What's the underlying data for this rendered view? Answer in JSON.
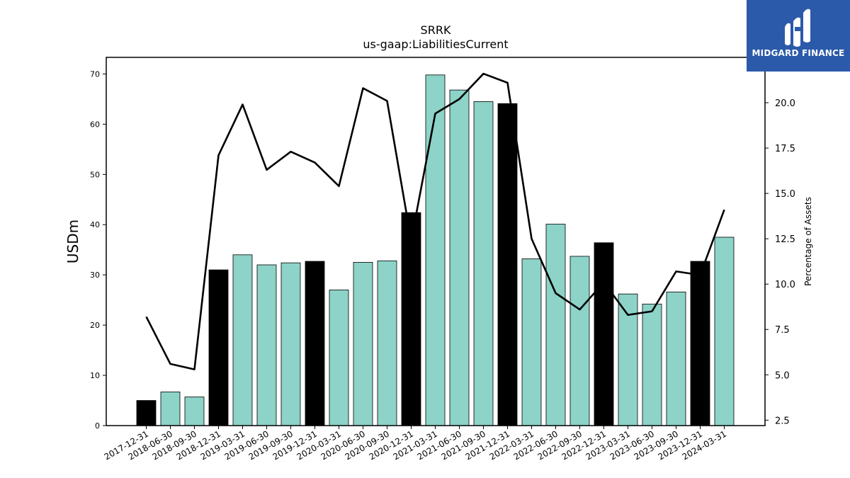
{
  "brand": {
    "name": "MIDGARD FINANCE",
    "icon": "midgard-logo-icon",
    "color": "#2b5aaa"
  },
  "chart_data": {
    "type": "bar",
    "title": "SRRK",
    "subtitle": "us-gaap:LiabilitiesCurrent",
    "ylabel": "USDm",
    "y2label": "Percentage of Assets",
    "ylim": [
      0,
      73.3
    ],
    "y2lim": [
      2.2,
      22.5
    ],
    "yticks": [
      0,
      10,
      20,
      30,
      40,
      50,
      60,
      70
    ],
    "y2ticks": [
      "2.5",
      "5.0",
      "7.5",
      "10.0",
      "12.5",
      "15.0",
      "17.5",
      "20.0"
    ],
    "categories": [
      "2017-12-31",
      "2018-06-30",
      "2018-09-30",
      "2018-12-31",
      "2019-03-31",
      "2019-06-30",
      "2019-09-30",
      "2019-12-31",
      "2020-03-31",
      "2020-06-30",
      "2020-09-30",
      "2020-12-31",
      "2021-03-31",
      "2021-06-30",
      "2021-09-30",
      "2021-12-31",
      "2022-03-31",
      "2022-06-30",
      "2022-09-30",
      "2022-12-31",
      "2023-03-31",
      "2023-06-30",
      "2023-09-30",
      "2023-12-31",
      "2024-03-31"
    ],
    "series": [
      {
        "kind": "bar",
        "values": [
          5.0,
          6.7,
          5.7,
          31.0,
          34.0,
          32.0,
          32.4,
          32.7,
          27.0,
          32.5,
          32.8,
          42.4,
          69.8,
          66.8,
          64.5,
          64.1,
          33.2,
          40.1,
          33.7,
          36.4,
          26.2,
          24.2,
          26.6,
          32.7,
          37.5
        ],
        "annual": [
          true,
          false,
          false,
          true,
          false,
          false,
          false,
          true,
          false,
          false,
          false,
          true,
          false,
          false,
          false,
          true,
          false,
          false,
          false,
          true,
          false,
          false,
          false,
          true,
          false
        ],
        "color": "#8dd3c7",
        "annual_color": "#000000"
      },
      {
        "kind": "line",
        "axis": "right",
        "values": [
          8.2,
          5.6,
          5.3,
          17.1,
          19.9,
          16.3,
          17.3,
          16.7,
          15.4,
          20.8,
          20.1,
          12.4,
          19.4,
          20.2,
          21.6,
          21.1,
          12.5,
          9.5,
          8.6,
          10.1,
          8.3,
          8.5,
          10.7,
          10.5,
          14.1
        ],
        "color": "#000000"
      }
    ]
  }
}
